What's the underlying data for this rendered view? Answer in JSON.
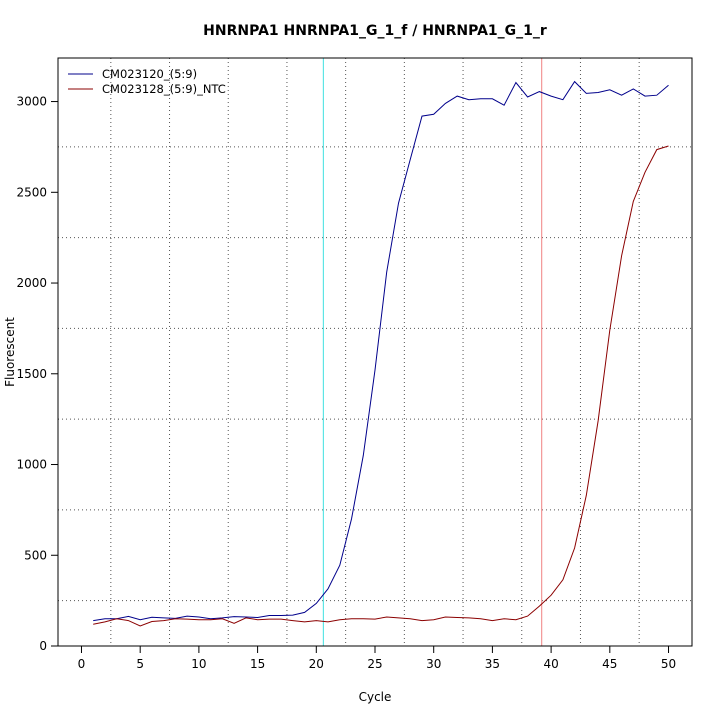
{
  "chart_data": {
    "type": "line",
    "title": "HNRNPA1  HNRNPA1_G_1_f / HNRNPA1_G_1_r",
    "xlabel": "Cycle",
    "ylabel": "Fluorescent",
    "xlim": [
      -2,
      52
    ],
    "ylim": [
      0,
      3240
    ],
    "x_ticks": [
      0,
      5,
      10,
      15,
      20,
      25,
      30,
      35,
      40,
      45,
      50
    ],
    "y_ticks": [
      0,
      500,
      1000,
      1500,
      2000,
      2500,
      3000
    ],
    "grid": "dotted, vertical every 2.5 cycles, horizontal every 250",
    "legend_position": "top-left",
    "threshold_lines": [
      {
        "x": 20.6,
        "color": "#40e0e0"
      },
      {
        "x": 39.2,
        "color": "#f08080"
      }
    ],
    "series": [
      {
        "name": "CM023120_(5:9)",
        "color": "#00008b",
        "x": [
          1,
          2,
          3,
          4,
          5,
          6,
          7,
          8,
          9,
          10,
          11,
          12,
          13,
          14,
          15,
          16,
          17,
          18,
          19,
          20,
          21,
          22,
          23,
          24,
          25,
          26,
          27,
          28,
          29,
          30,
          31,
          32,
          33,
          34,
          35,
          36,
          37,
          38,
          39,
          40,
          41,
          42,
          43,
          44,
          45,
          46,
          47,
          48,
          49,
          50
        ],
        "values": [
          140,
          150,
          150,
          163,
          145,
          158,
          155,
          152,
          165,
          160,
          150,
          155,
          162,
          160,
          157,
          168,
          168,
          170,
          185,
          235,
          315,
          445,
          700,
          1050,
          1520,
          2060,
          2440,
          2680,
          2920,
          2930,
          2990,
          3030,
          3010,
          3015,
          3015,
          2980,
          3105,
          3025,
          3055,
          3030,
          3010,
          3110,
          3045,
          3050,
          3065,
          3035,
          3070,
          3030,
          3035,
          3090
        ]
      },
      {
        "name": "CM023128_(5:9)_NTC",
        "color": "#8b0000",
        "x": [
          1,
          2,
          3,
          4,
          5,
          6,
          7,
          8,
          9,
          10,
          11,
          12,
          13,
          14,
          15,
          16,
          17,
          18,
          19,
          20,
          21,
          22,
          23,
          24,
          25,
          26,
          27,
          28,
          29,
          30,
          31,
          32,
          33,
          34,
          35,
          36,
          37,
          38,
          39,
          40,
          41,
          42,
          43,
          44,
          45,
          46,
          47,
          48,
          49,
          50
        ],
        "values": [
          120,
          133,
          150,
          140,
          110,
          135,
          140,
          150,
          148,
          145,
          145,
          150,
          125,
          155,
          145,
          148,
          148,
          140,
          133,
          140,
          133,
          145,
          150,
          150,
          148,
          160,
          155,
          150,
          140,
          145,
          160,
          157,
          155,
          150,
          140,
          150,
          145,
          165,
          220,
          280,
          365,
          540,
          830,
          1240,
          1740,
          2150,
          2450,
          2610,
          2735,
          2755
        ]
      }
    ]
  }
}
